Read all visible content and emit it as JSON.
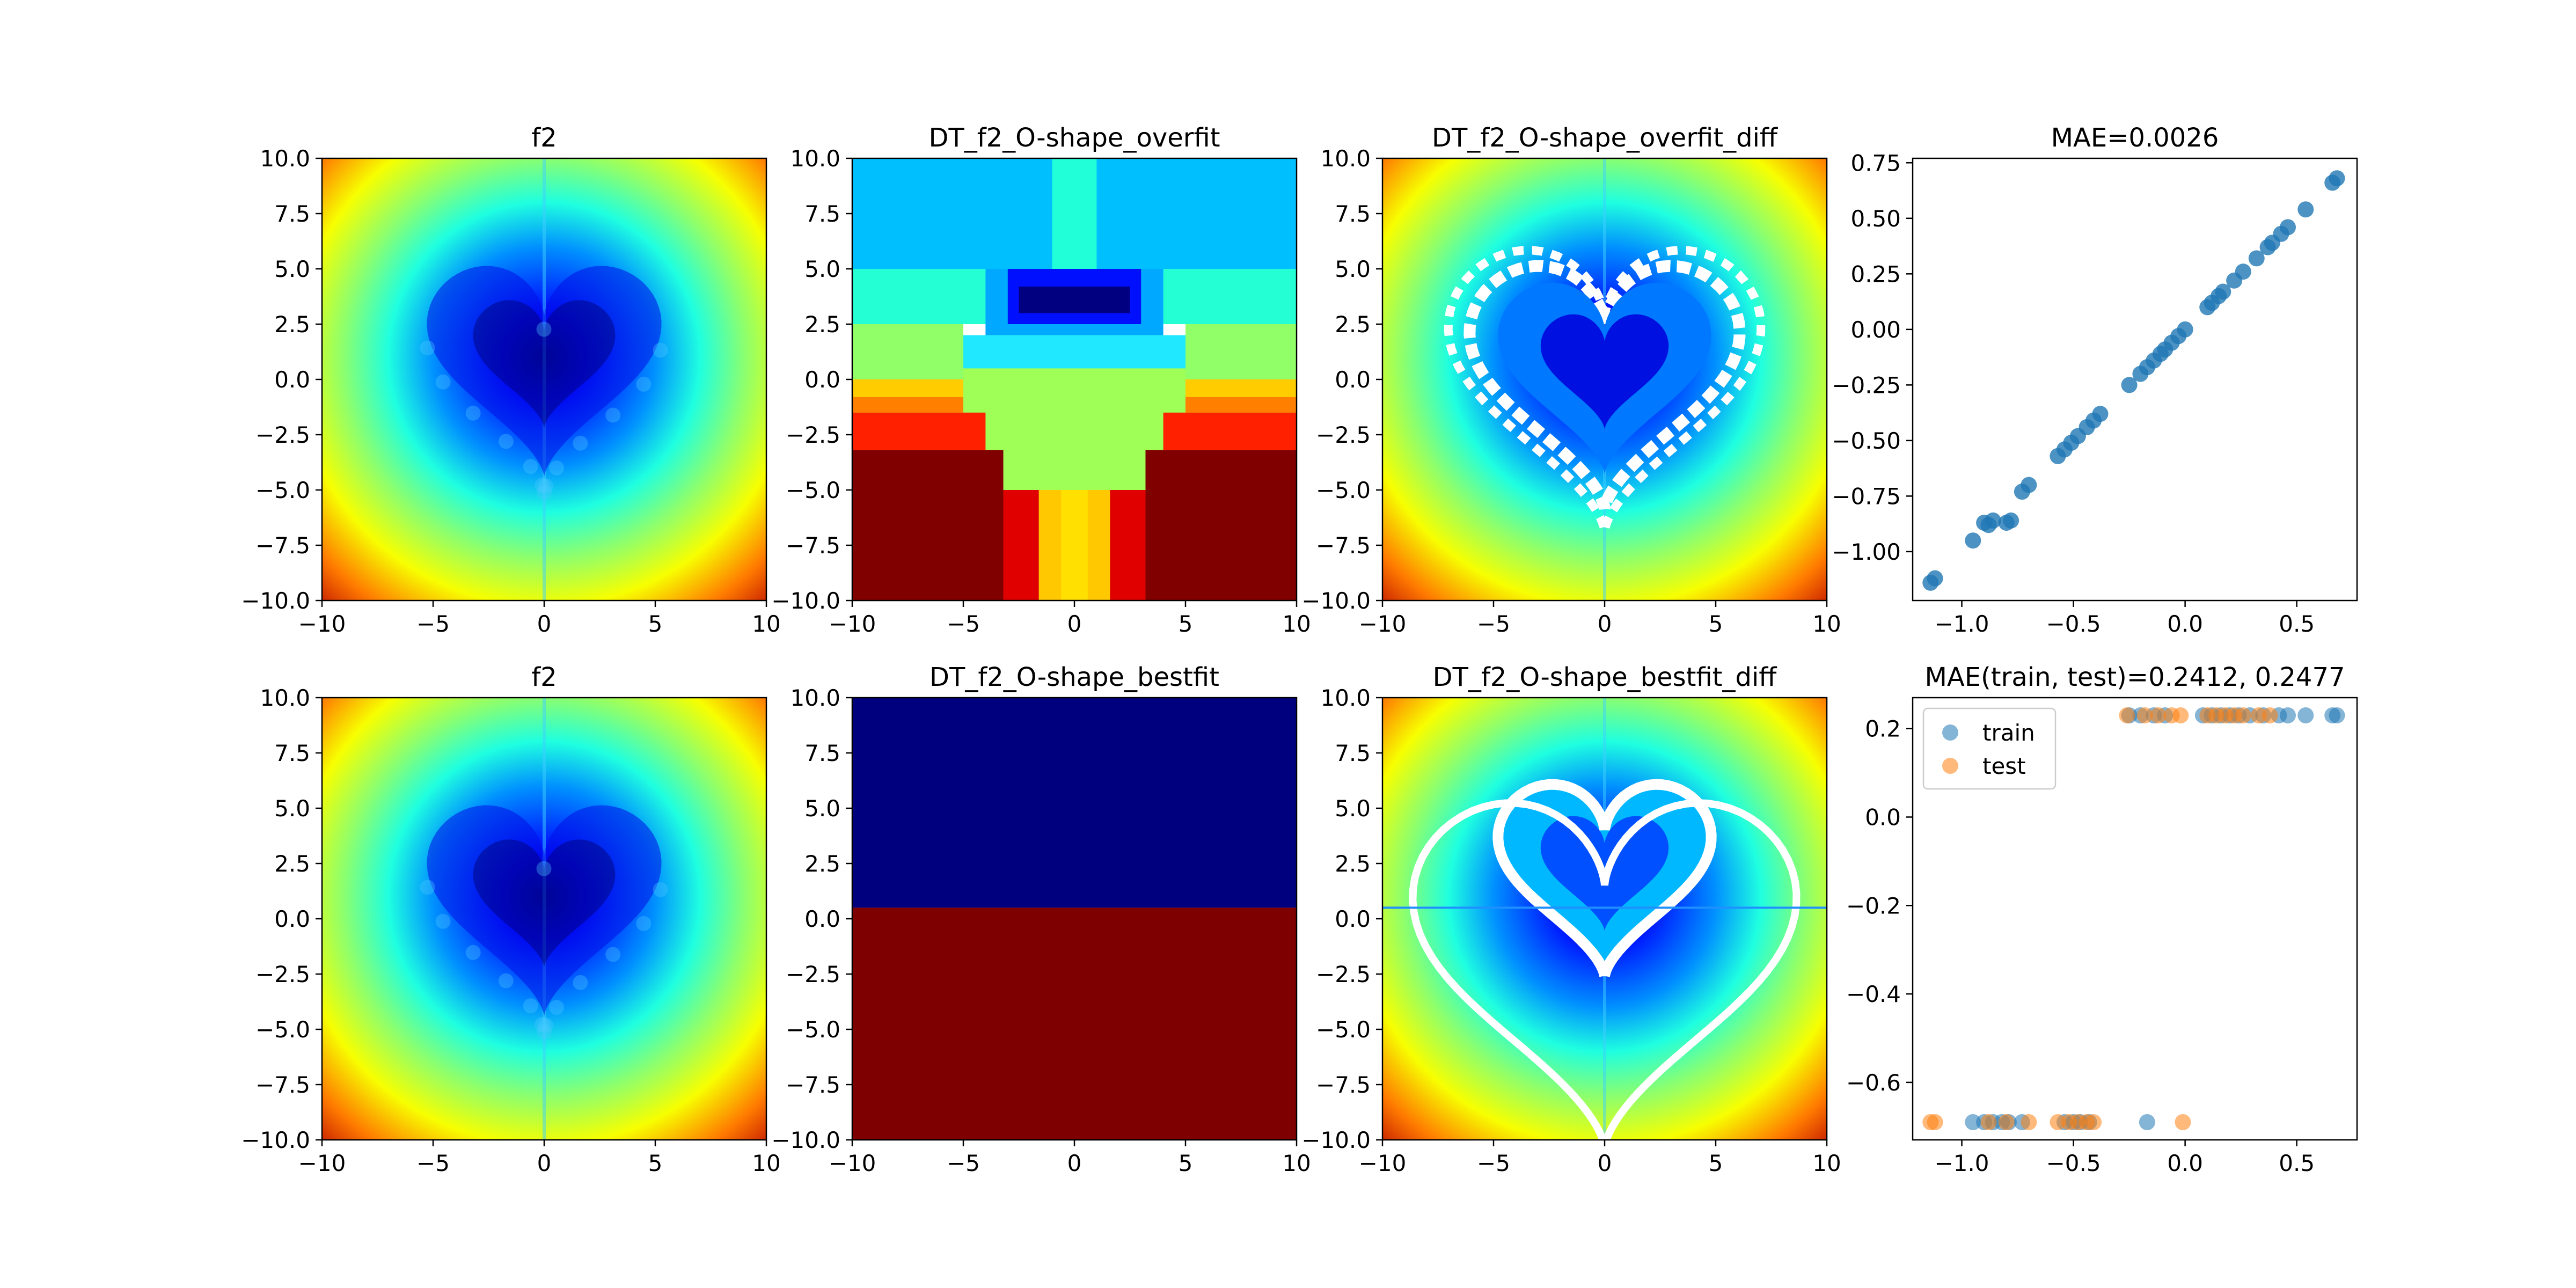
{
  "chart_data": [
    {
      "type": "heatmap",
      "title": "f2",
      "colormap": "jet",
      "xlim": [
        -10,
        10
      ],
      "ylim": [
        -10,
        10
      ],
      "xticks": [
        "−10",
        "−5",
        "0",
        "5",
        "10"
      ],
      "yticks": [
        "10.0",
        "7.5",
        "5.0",
        "2.5",
        "0.0",
        "−2.5",
        "−5.0",
        "−7.5",
        "−10.0"
      ],
      "description_values": "smooth heart-shaped field, minimum near (0, 0.5), rising to maximum at bottom corners"
    },
    {
      "type": "heatmap",
      "title": "DT_f2_O-shape_overfit",
      "colormap": "jet",
      "xlim": [
        -10,
        10
      ],
      "ylim": [
        -10,
        10
      ],
      "xticks": [
        "−10",
        "−5",
        "0",
        "5",
        "10"
      ],
      "yticks": [
        "10.0",
        "7.5",
        "5.0",
        "2.5",
        "0.0",
        "−2.5",
        "−5.0",
        "−7.5",
        "−10.0"
      ]
    },
    {
      "type": "heatmap",
      "title": "DT_f2_O-shape_overfit_diff",
      "colormap": "jet",
      "xlim": [
        -10,
        10
      ],
      "ylim": [
        -10,
        10
      ],
      "xticks": [
        "−10",
        "−5",
        "0",
        "5",
        "10"
      ],
      "yticks": [
        "10.0",
        "7.5",
        "5.0",
        "2.5",
        "0.0",
        "−2.5",
        "−5.0",
        "−7.5",
        "−10.0"
      ]
    },
    {
      "type": "scatter",
      "title": "MAE=0.0026",
      "xlim": [
        -1.22,
        0.77
      ],
      "ylim": [
        -1.22,
        0.77
      ],
      "xticks": [
        "−1.0",
        "−0.5",
        "0.0",
        "0.5"
      ],
      "yticks": [
        "0.75",
        "0.50",
        "0.25",
        "0.00",
        "−0.25",
        "−0.50",
        "−0.75",
        "−1.00"
      ],
      "series": [
        {
          "color": "#1f77b4",
          "x": [
            -1.14,
            -1.12,
            -0.95,
            -0.9,
            -0.88,
            -0.86,
            -0.8,
            -0.78,
            -0.73,
            -0.7,
            -0.57,
            -0.54,
            -0.51,
            -0.48,
            -0.44,
            -0.41,
            -0.38,
            -0.25,
            -0.2,
            -0.17,
            -0.14,
            -0.11,
            -0.09,
            -0.06,
            -0.03,
            0.0,
            0.1,
            0.12,
            0.15,
            0.17,
            0.22,
            0.26,
            0.32,
            0.37,
            0.39,
            0.43,
            0.46,
            0.54,
            0.66,
            0.68
          ],
          "y": [
            -1.14,
            -1.12,
            -0.95,
            -0.87,
            -0.88,
            -0.86,
            -0.87,
            -0.86,
            -0.73,
            -0.7,
            -0.57,
            -0.54,
            -0.51,
            -0.48,
            -0.44,
            -0.41,
            -0.38,
            -0.25,
            -0.2,
            -0.17,
            -0.14,
            -0.11,
            -0.09,
            -0.06,
            -0.03,
            0.0,
            0.1,
            0.12,
            0.15,
            0.17,
            0.22,
            0.26,
            0.32,
            0.37,
            0.39,
            0.43,
            0.46,
            0.54,
            0.66,
            0.68
          ]
        }
      ]
    },
    {
      "type": "heatmap",
      "title": "f2",
      "colormap": "jet",
      "xlim": [
        -10,
        10
      ],
      "ylim": [
        -10,
        10
      ],
      "xticks": [
        "−10",
        "−5",
        "0",
        "5",
        "10"
      ],
      "yticks": [
        "10.0",
        "7.5",
        "5.0",
        "2.5",
        "0.0",
        "−2.5",
        "−5.0",
        "−7.5",
        "−10.0"
      ]
    },
    {
      "type": "heatmap",
      "title": "DT_f2_O-shape_bestfit",
      "colormap": "jet",
      "xlim": [
        -10,
        10
      ],
      "ylim": [
        -10,
        10
      ],
      "xticks": [
        "−10",
        "−5",
        "0",
        "5",
        "10"
      ],
      "yticks": [
        "10.0",
        "7.5",
        "5.0",
        "2.5",
        "0.0",
        "−2.5",
        "−5.0",
        "−7.5",
        "−10.0"
      ],
      "regions": [
        {
          "y_from": 0.5,
          "y_to": 10,
          "color": "#00007f"
        },
        {
          "y_from": -10,
          "y_to": 0.5,
          "color": "#7f0000"
        }
      ]
    },
    {
      "type": "heatmap",
      "title": "DT_f2_O-shape_bestfit_diff",
      "colormap": "jet",
      "xlim": [
        -10,
        10
      ],
      "ylim": [
        -10,
        10
      ],
      "xticks": [
        "−10",
        "−5",
        "0",
        "5",
        "10"
      ],
      "yticks": [
        "10.0",
        "7.5",
        "5.0",
        "2.5",
        "0.0",
        "−2.5",
        "−5.0",
        "−7.5",
        "−10.0"
      ]
    },
    {
      "type": "scatter",
      "title": "MAE(train, test)=0.2412, 0.2477",
      "xlim": [
        -1.22,
        0.77
      ],
      "ylim": [
        -0.73,
        0.27
      ],
      "xticks": [
        "−1.0",
        "−0.5",
        "0.0",
        "0.5"
      ],
      "yticks": [
        "0.2",
        "0.0",
        "−0.2",
        "−0.4",
        "−0.6"
      ],
      "legend_position": "upper-left",
      "series": [
        {
          "name": "train",
          "color": "#1f77b4",
          "x": [
            -0.95,
            -0.9,
            -0.86,
            -0.82,
            -0.79,
            -0.73,
            -0.54,
            -0.5,
            -0.47,
            -0.43,
            -0.17,
            -0.25,
            -0.2,
            -0.14,
            -0.09,
            0.08,
            0.12,
            0.16,
            0.2,
            0.24,
            0.29,
            0.35,
            0.42,
            0.46,
            0.54,
            0.66,
            0.68
          ],
          "y": [
            -0.69,
            -0.69,
            -0.69,
            -0.69,
            -0.69,
            -0.69,
            -0.69,
            -0.69,
            -0.69,
            -0.69,
            -0.69,
            0.23,
            0.23,
            0.23,
            0.23,
            0.23,
            0.23,
            0.23,
            0.23,
            0.23,
            0.23,
            0.23,
            0.23,
            0.23,
            0.23,
            0.23,
            0.23
          ]
        },
        {
          "name": "test",
          "color": "#ff7f0e",
          "x": [
            -1.14,
            -1.12,
            -0.88,
            -0.8,
            -0.7,
            -0.57,
            -0.52,
            -0.48,
            -0.44,
            -0.41,
            -0.01,
            -0.26,
            -0.18,
            -0.12,
            -0.06,
            -0.02,
            0.1,
            0.14,
            0.18,
            0.22,
            0.26,
            0.33,
            0.38
          ],
          "y": [
            -0.69,
            -0.69,
            -0.69,
            -0.69,
            -0.69,
            -0.69,
            -0.69,
            -0.69,
            -0.69,
            -0.69,
            -0.69,
            0.23,
            0.23,
            0.23,
            0.23,
            0.23,
            0.23,
            0.23,
            0.23,
            0.23,
            0.23,
            0.23,
            0.23
          ]
        }
      ]
    }
  ]
}
